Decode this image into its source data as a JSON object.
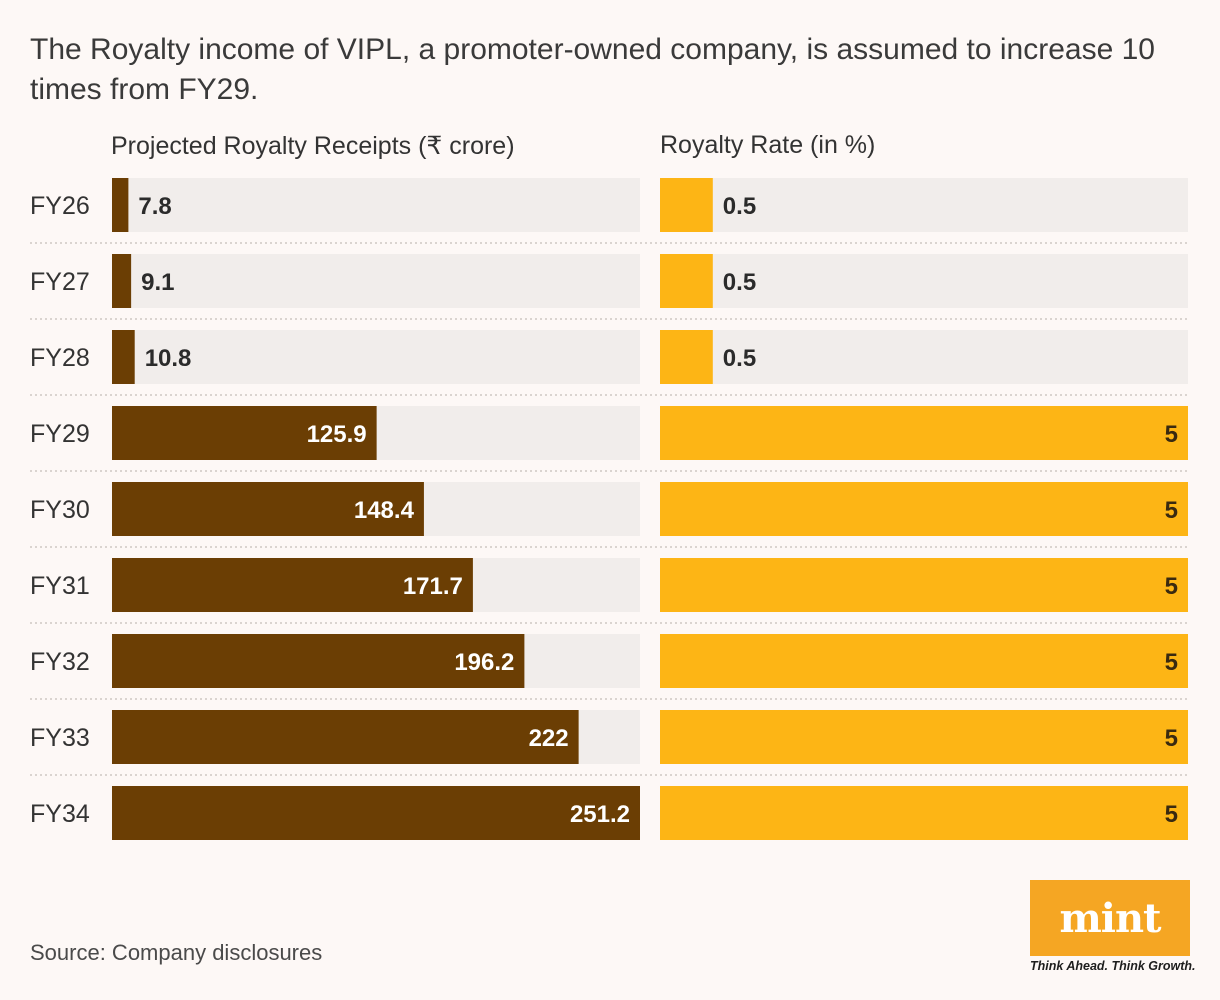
{
  "title": "The Royalty income of VIPL, a promoter-owned company, is assumed to increase 10 times from FY29.",
  "source": "Source: Company disclosures",
  "logo": {
    "wordmark": "mint",
    "tagline": "Think Ahead. Think Growth."
  },
  "colors": {
    "background": "#fdf8f6",
    "track": "#f1edeb",
    "receipts_bar": "#6b3e04",
    "rate_bar": "#fdb515",
    "logo": "#f5a623"
  },
  "chart_data": {
    "type": "bar",
    "orientation": "horizontal",
    "categories": [
      "FY26",
      "FY27",
      "FY28",
      "FY29",
      "FY30",
      "FY31",
      "FY32",
      "FY33",
      "FY34"
    ],
    "panels": [
      {
        "title": "Projected Royalty Receipts (₹ crore)",
        "values": [
          7.8,
          9.1,
          10.8,
          125.9,
          148.4,
          171.7,
          196.2,
          222,
          251.2
        ],
        "labels": [
          "7.8",
          "9.1",
          "10.8",
          "125.9",
          "148.4",
          "171.7",
          "196.2",
          "222",
          "251.2"
        ],
        "xlim": [
          0,
          251.2
        ],
        "color": "#6b3e04"
      },
      {
        "title": "Royalty Rate (in %)",
        "values": [
          0.5,
          0.5,
          0.5,
          5,
          5,
          5,
          5,
          5,
          5
        ],
        "labels": [
          "0.5",
          "0.5",
          "0.5",
          "5",
          "5",
          "5",
          "5",
          "5",
          "5"
        ],
        "xlim": [
          0,
          5
        ],
        "color": "#fdb515"
      }
    ],
    "grid": false,
    "legend": "none"
  }
}
